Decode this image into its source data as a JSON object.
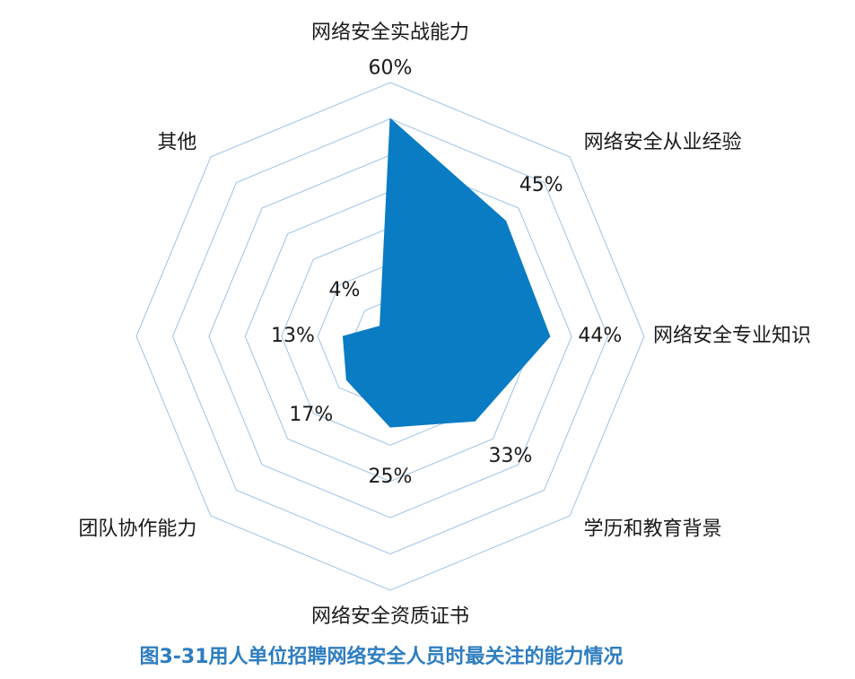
{
  "chart_data": {
    "type": "radar",
    "categories": [
      "网络安全实战能力",
      "网络安全从业经验",
      "网络安全专业知识",
      "学历和教育背景",
      "网络安全资质证书",
      "团队协作能力",
      null,
      "其他"
    ],
    "values": [
      60,
      45,
      44,
      33,
      25,
      17,
      13,
      4
    ],
    "value_labels": [
      "60%",
      "45%",
      "44%",
      "33%",
      "25%",
      "17%",
      "13%",
      "4%"
    ],
    "color": "#0a7cc4",
    "grid_color": "#9dc3e6",
    "ylim": [
      0,
      70
    ],
    "yticks": [
      0,
      10,
      20,
      30,
      40,
      50,
      60,
      70
    ],
    "grid": true,
    "caption": "图3-31用人单位招聘网络安全人员时最关注的能力情况"
  }
}
